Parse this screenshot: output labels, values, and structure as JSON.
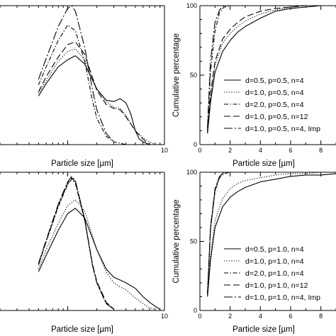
{
  "chart_data": [
    {
      "id": "top-left",
      "type": "line",
      "xlabel": "Particle size [µm]",
      "ylabel": "",
      "xscale": "log",
      "xlim": [
        0.2,
        10
      ],
      "ylim": [
        0,
        1.0
      ],
      "xticks": [
        {
          "v": 10,
          "label": "10"
        }
      ],
      "yticks": [],
      "series": [
        {
          "style": "solid",
          "x": [
            0.5,
            0.6,
            0.8,
            1.0,
            1.2,
            1.5,
            2.0,
            2.5,
            3.0,
            3.5,
            4.0,
            4.5,
            5.0,
            5.5,
            6.0,
            7.0
          ],
          "y": [
            0.35,
            0.44,
            0.56,
            0.61,
            0.64,
            0.58,
            0.4,
            0.32,
            0.31,
            0.33,
            0.3,
            0.22,
            0.1,
            0.04,
            0.02,
            0.0
          ]
        },
        {
          "style": "dotted",
          "x": [
            0.5,
            0.6,
            0.8,
            1.0,
            1.2,
            1.5,
            2.0,
            2.5,
            3.0,
            3.5,
            4.0,
            5.0,
            6.0,
            7.0,
            8.0
          ],
          "y": [
            0.37,
            0.46,
            0.6,
            0.67,
            0.69,
            0.61,
            0.4,
            0.31,
            0.27,
            0.26,
            0.21,
            0.1,
            0.05,
            0.02,
            0.0
          ]
        },
        {
          "style": "dashdot",
          "x": [
            0.5,
            0.6,
            0.8,
            1.0,
            1.2,
            1.5,
            1.8,
            2.0,
            2.5,
            3.0,
            3.5,
            4.0
          ],
          "y": [
            0.43,
            0.56,
            0.75,
            0.86,
            0.82,
            0.6,
            0.32,
            0.19,
            0.06,
            0.02,
            0.01,
            0.0
          ]
        },
        {
          "style": "longdash",
          "x": [
            0.5,
            0.6,
            0.8,
            1.0,
            1.2,
            1.5,
            2.0,
            2.5,
            3.0,
            3.5,
            4.0,
            5.0,
            6.0,
            7.0
          ],
          "y": [
            0.38,
            0.49,
            0.63,
            0.72,
            0.74,
            0.65,
            0.39,
            0.29,
            0.26,
            0.25,
            0.2,
            0.1,
            0.04,
            0.0
          ]
        },
        {
          "style": "dashdotlong",
          "x": [
            0.5,
            0.6,
            0.8,
            1.0,
            1.1,
            1.2,
            1.5,
            1.8,
            2.0,
            2.5,
            3.0
          ],
          "y": [
            0.47,
            0.62,
            0.85,
            0.98,
            1.0,
            0.96,
            0.7,
            0.4,
            0.25,
            0.08,
            0.02
          ]
        }
      ]
    },
    {
      "id": "top-right",
      "type": "line",
      "xlabel": "Particle size [µm]",
      "ylabel": "Cumulative percentage",
      "xlim": [
        0,
        9
      ],
      "ylim": [
        0,
        100
      ],
      "xticks": [
        {
          "v": 0,
          "label": "0"
        },
        {
          "v": 2,
          "label": "2"
        },
        {
          "v": 4,
          "label": "4"
        },
        {
          "v": 6,
          "label": "6"
        },
        {
          "v": 8,
          "label": "8"
        }
      ],
      "yticks": [
        {
          "v": 0,
          "label": "0"
        },
        {
          "v": 50,
          "label": "50"
        },
        {
          "v": 100,
          "label": "100"
        }
      ],
      "legend": [
        "d=0.5, p=0.5, n=4",
        "d=1.0, p=0.5, n=4",
        "d=2.0, p=0.5, n=4",
        "d=1.0, p=0.5, n=12",
        "d=1.0, p=0.5, n=4, Imp"
      ],
      "series": [
        {
          "style": "solid",
          "x": [
            0.5,
            0.7,
            1.0,
            1.5,
            2.0,
            2.5,
            3.0,
            4.0,
            5.0,
            6.0,
            7.0,
            8.0,
            9.0
          ],
          "y": [
            8,
            30,
            52,
            67,
            75,
            81,
            85,
            91,
            96,
            98,
            99,
            100,
            100
          ]
        },
        {
          "style": "dotted",
          "x": [
            0.5,
            0.7,
            1.0,
            1.5,
            2.0,
            2.5,
            3.0,
            4.0,
            5.0,
            6.0,
            7.0,
            8.0,
            9.0
          ],
          "y": [
            9,
            34,
            57,
            73,
            80,
            85,
            89,
            94,
            97,
            99,
            100,
            100,
            100
          ]
        },
        {
          "style": "dashdot",
          "x": [
            0.5,
            0.7,
            1.0,
            1.3,
            1.6,
            2.0,
            2.5,
            3.0,
            4.0
          ],
          "y": [
            10,
            52,
            82,
            95,
            99,
            100,
            100,
            100,
            100
          ]
        },
        {
          "style": "longdash",
          "x": [
            0.5,
            0.7,
            1.0,
            1.5,
            2.0,
            2.5,
            3.0,
            4.0,
            5.0,
            6.0,
            7.0,
            8.0,
            9.0
          ],
          "y": [
            9,
            36,
            60,
            76,
            83,
            88,
            92,
            96,
            98,
            99,
            100,
            100,
            100
          ]
        },
        {
          "style": "dashdotlong",
          "x": [
            0.5,
            0.7,
            1.0,
            1.3,
            1.6,
            2.0,
            2.5,
            3.0,
            4.0
          ],
          "y": [
            12,
            60,
            88,
            97,
            100,
            100,
            100,
            100,
            100
          ]
        }
      ]
    },
    {
      "id": "bottom-left",
      "type": "line",
      "xlabel": "Particle size [µm]",
      "ylabel": "",
      "xscale": "log",
      "xlim": [
        0.2,
        10
      ],
      "ylim": [
        0,
        1.0
      ],
      "xticks": [
        {
          "v": 10,
          "label": "10"
        }
      ],
      "yticks": [],
      "series": [
        {
          "style": "solid",
          "x": [
            0.5,
            0.6,
            0.8,
            1.0,
            1.2,
            1.5,
            2.0,
            2.5,
            3.0,
            3.5,
            4.0,
            5.0,
            6.0,
            7.0,
            8.0,
            9.0
          ],
          "y": [
            0.28,
            0.4,
            0.58,
            0.7,
            0.74,
            0.67,
            0.44,
            0.3,
            0.24,
            0.22,
            0.2,
            0.16,
            0.1,
            0.06,
            0.03,
            0.01
          ]
        },
        {
          "style": "dotted",
          "x": [
            0.5,
            0.6,
            0.8,
            1.0,
            1.2,
            1.5,
            2.0,
            2.5,
            3.0,
            3.5,
            4.0,
            5.0,
            6.0,
            7.0,
            8.0
          ],
          "y": [
            0.3,
            0.44,
            0.63,
            0.76,
            0.8,
            0.72,
            0.44,
            0.28,
            0.2,
            0.17,
            0.15,
            0.09,
            0.05,
            0.02,
            0.01
          ]
        },
        {
          "style": "dashdot",
          "x": [
            0.5,
            0.6,
            0.8,
            1.0,
            1.1,
            1.2,
            1.5,
            1.8,
            2.0,
            2.5,
            3.0
          ],
          "y": [
            0.33,
            0.5,
            0.75,
            0.91,
            0.95,
            0.92,
            0.65,
            0.33,
            0.2,
            0.05,
            0.01
          ]
        },
        {
          "style": "longdash",
          "x": [
            0.5,
            0.6,
            0.8,
            1.0,
            1.1,
            1.2,
            1.5,
            1.8,
            2.0,
            2.5,
            3.0
          ],
          "y": [
            0.33,
            0.5,
            0.76,
            0.92,
            0.96,
            0.93,
            0.66,
            0.34,
            0.21,
            0.06,
            0.01
          ]
        },
        {
          "style": "dashdotlong",
          "x": [
            0.5,
            0.6,
            0.8,
            1.0,
            1.1,
            1.2,
            1.5,
            1.8,
            2.0,
            2.5,
            3.0
          ],
          "y": [
            0.34,
            0.51,
            0.77,
            0.93,
            0.97,
            0.94,
            0.66,
            0.33,
            0.2,
            0.05,
            0.01
          ]
        }
      ]
    },
    {
      "id": "bottom-right",
      "type": "line",
      "xlabel": "Particle size [µm]",
      "ylabel": "Cumulative percentage",
      "xlim": [
        0,
        9
      ],
      "ylim": [
        0,
        100
      ],
      "xticks": [
        {
          "v": 0,
          "label": "0"
        },
        {
          "v": 2,
          "label": "2"
        },
        {
          "v": 4,
          "label": "4"
        },
        {
          "v": 6,
          "label": "6"
        },
        {
          "v": 8,
          "label": "8"
        }
      ],
      "yticks": [
        {
          "v": 0,
          "label": "0"
        },
        {
          "v": 50,
          "label": "50"
        },
        {
          "v": 100,
          "label": "100"
        }
      ],
      "legend": [
        "d=0.5, p=1.0, n=4",
        "d=1.0, p=1.0, n=4",
        "d=2.0, p=1.0, n=4",
        "d=1.0, p=1.0, n=12",
        "d=1.0, p=1.0, n=4, Imp"
      ],
      "series": [
        {
          "style": "solid",
          "x": [
            0.5,
            0.7,
            1.0,
            1.5,
            2.0,
            2.5,
            3.0,
            4.0,
            5.0,
            6.0,
            7.0,
            8.0,
            9.0
          ],
          "y": [
            10,
            36,
            60,
            75,
            82,
            86,
            89,
            93,
            95,
            97,
            98,
            98,
            99
          ]
        },
        {
          "style": "dotted",
          "x": [
            0.5,
            0.7,
            1.0,
            1.5,
            2.0,
            2.5,
            3.0,
            4.0,
            5.0,
            6.0,
            7.0,
            8.0,
            9.0
          ],
          "y": [
            11,
            40,
            65,
            81,
            88,
            92,
            94,
            96,
            98,
            99,
            99,
            100,
            100
          ]
        },
        {
          "style": "dashdot",
          "x": [
            0.5,
            0.7,
            1.0,
            1.3,
            1.6,
            2.0,
            2.5,
            3.0,
            4.0
          ],
          "y": [
            12,
            58,
            86,
            96,
            99,
            100,
            100,
            100,
            100
          ]
        },
        {
          "style": "longdash",
          "x": [
            0.5,
            0.7,
            1.0,
            1.3,
            1.6,
            2.0,
            2.5,
            3.0,
            4.0
          ],
          "y": [
            12,
            59,
            87,
            97,
            100,
            100,
            100,
            100,
            100
          ]
        },
        {
          "style": "dashdotlong",
          "x": [
            0.5,
            0.7,
            1.0,
            1.3,
            1.6,
            2.0,
            2.5,
            3.0,
            4.0
          ],
          "y": [
            12,
            60,
            88,
            97,
            100,
            100,
            100,
            100,
            100
          ]
        }
      ]
    }
  ]
}
